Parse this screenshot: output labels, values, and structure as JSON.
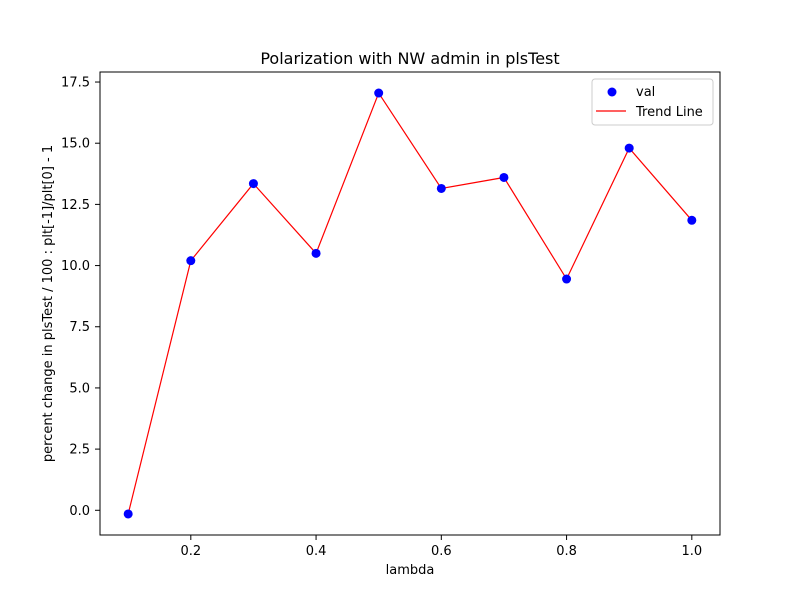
{
  "chart_data": {
    "type": "scatter",
    "title": "Polarization with NW admin in plsTest",
    "xlabel": "lambda",
    "ylabel": "percent change in plsTest / 100 : plt[-1]/plt[0] - 1",
    "x": [
      0.1,
      0.2,
      0.3,
      0.4,
      0.5,
      0.6,
      0.7,
      0.8,
      0.9,
      1.0
    ],
    "series": [
      {
        "name": "val",
        "kind": "scatter",
        "color": "#0000ff",
        "values": [
          -0.15,
          10.2,
          13.35,
          10.5,
          17.05,
          13.15,
          13.6,
          9.45,
          14.8,
          11.85
        ]
      },
      {
        "name": "Trend Line",
        "kind": "line",
        "color": "#ff0000",
        "values": [
          -0.15,
          10.2,
          13.35,
          10.5,
          17.05,
          13.15,
          13.6,
          9.45,
          14.8,
          11.85
        ]
      }
    ],
    "xlim": [
      0.055,
      1.045
    ],
    "ylim": [
      -1.01,
      17.91
    ],
    "xticks": [
      0.2,
      0.4,
      0.6,
      0.8,
      1.0
    ],
    "xtick_labels": [
      "0.2",
      "0.4",
      "0.6",
      "0.8",
      "1.0"
    ],
    "yticks": [
      0.0,
      2.5,
      5.0,
      7.5,
      10.0,
      12.5,
      15.0,
      17.5
    ],
    "ytick_labels": [
      "0.0",
      "2.5",
      "5.0",
      "7.5",
      "10.0",
      "12.5",
      "15.0",
      "17.5"
    ],
    "grid": false,
    "legend_position": "top-right"
  }
}
